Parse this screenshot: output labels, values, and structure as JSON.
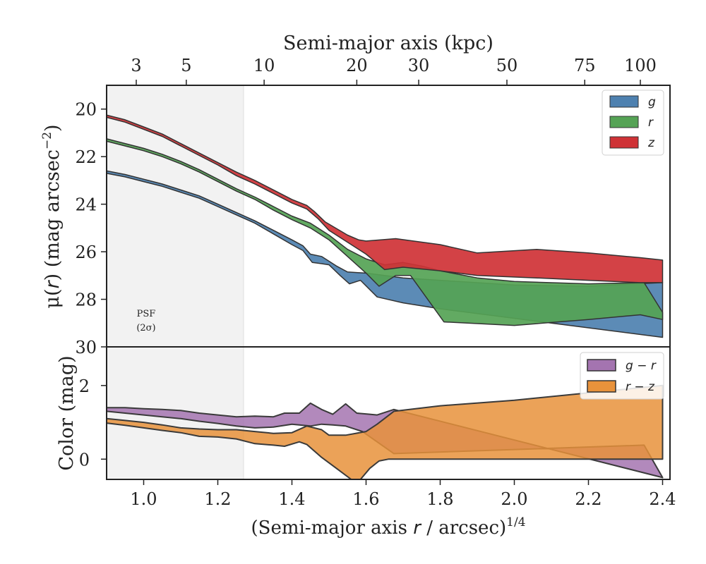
{
  "figure": {
    "top_axis_title": "Semi-major axis (kpc)",
    "bottom_axis_title_main": "(Semi-major axis ",
    "bottom_axis_title_var": "r",
    "bottom_axis_title_rest": " / arcsec)",
    "bottom_axis_title_exp": "1/4",
    "top_panel_ylabel_prefix": "μ(",
    "top_panel_ylabel_var": "r",
    "top_panel_ylabel_suffix": ") (mag arcsec",
    "top_panel_ylabel_exp": "−2",
    "top_panel_ylabel_close": ")",
    "bottom_panel_ylabel": "Color (mag)",
    "psf_label_line1": "PSF",
    "psf_label_line2": "(2σ)"
  },
  "colors": {
    "g": "#4e81b0",
    "r": "#55a355",
    "z": "#cf3236",
    "g_minus_r": "#a474b0",
    "r_minus_z": "#e8923b",
    "psf_band": "#f2f2f2",
    "axis": "#222222"
  },
  "chart_data": [
    {
      "type": "area",
      "panel": "surface-brightness",
      "xlabel": "(Semi-major axis r / arcsec)^1/4",
      "ylabel": "μ(r) (mag arcsec^−2)",
      "xlim": [
        0.9,
        2.42
      ],
      "ylim": [
        30,
        19
      ],
      "y_inverted": true,
      "yticks": [
        20,
        22,
        24,
        26,
        28,
        30
      ],
      "top_axis": {
        "label": "Semi-major axis (kpc)",
        "ticks": [
          {
            "label": "3",
            "x": 0.98
          },
          {
            "label": "5",
            "x": 1.115
          },
          {
            "label": "10",
            "x": 1.325
          },
          {
            "label": "20",
            "x": 1.575
          },
          {
            "label": "30",
            "x": 1.742
          },
          {
            "label": "50",
            "x": 1.98
          },
          {
            "label": "75",
            "x": 2.19
          },
          {
            "label": "100",
            "x": 2.34
          }
        ]
      },
      "psf_band": {
        "label": "PSF (2σ)",
        "x_range": [
          0.9,
          1.275
        ]
      },
      "legend": {
        "location": "top-right",
        "entries": [
          "g",
          "r",
          "z"
        ]
      },
      "series": [
        {
          "name": "g",
          "upper": [
            [
              0.9,
              22.6
            ],
            [
              0.95,
              22.75
            ],
            [
              1.0,
              22.95
            ],
            [
              1.05,
              23.15
            ],
            [
              1.1,
              23.4
            ],
            [
              1.15,
              23.65
            ],
            [
              1.2,
              24.0
            ],
            [
              1.25,
              24.35
            ],
            [
              1.3,
              24.7
            ],
            [
              1.35,
              25.1
            ],
            [
              1.4,
              25.5
            ],
            [
              1.43,
              25.75
            ],
            [
              1.45,
              26.1
            ],
            [
              1.48,
              26.2
            ],
            [
              1.52,
              26.6
            ],
            [
              1.55,
              26.85
            ],
            [
              1.6,
              26.9
            ],
            [
              1.65,
              27.0
            ],
            [
              1.7,
              27.1
            ],
            [
              1.8,
              27.2
            ],
            [
              2.0,
              27.4
            ],
            [
              2.2,
              27.45
            ],
            [
              2.4,
              27.3
            ]
          ],
          "lower": [
            [
              0.9,
              22.7
            ],
            [
              0.95,
              22.85
            ],
            [
              1.0,
              23.05
            ],
            [
              1.05,
              23.25
            ],
            [
              1.1,
              23.5
            ],
            [
              1.15,
              23.75
            ],
            [
              1.2,
              24.1
            ],
            [
              1.25,
              24.45
            ],
            [
              1.3,
              24.8
            ],
            [
              1.35,
              25.25
            ],
            [
              1.4,
              25.7
            ],
            [
              1.43,
              25.95
            ],
            [
              1.455,
              26.45
            ],
            [
              1.48,
              26.5
            ],
            [
              1.5,
              26.55
            ],
            [
              1.53,
              27.0
            ],
            [
              1.555,
              27.35
            ],
            [
              1.585,
              27.2
            ],
            [
              1.63,
              27.9
            ],
            [
              1.7,
              28.15
            ],
            [
              1.8,
              28.4
            ],
            [
              2.0,
              28.8
            ],
            [
              2.2,
              29.2
            ],
            [
              2.4,
              29.6
            ]
          ]
        },
        {
          "name": "r",
          "upper": [
            [
              0.9,
              21.25
            ],
            [
              0.95,
              21.45
            ],
            [
              1.0,
              21.65
            ],
            [
              1.05,
              21.9
            ],
            [
              1.1,
              22.2
            ],
            [
              1.15,
              22.55
            ],
            [
              1.2,
              22.95
            ],
            [
              1.25,
              23.35
            ],
            [
              1.3,
              23.7
            ],
            [
              1.35,
              24.1
            ],
            [
              1.4,
              24.5
            ],
            [
              1.45,
              24.8
            ],
            [
              1.5,
              25.3
            ],
            [
              1.55,
              25.9
            ],
            [
              1.6,
              26.3
            ],
            [
              1.65,
              26.55
            ],
            [
              1.7,
              26.45
            ],
            [
              1.75,
              26.6
            ],
            [
              1.8,
              26.8
            ],
            [
              1.9,
              27.1
            ],
            [
              2.0,
              27.25
            ],
            [
              2.2,
              27.35
            ],
            [
              2.35,
              27.3
            ],
            [
              2.4,
              28.55
            ]
          ],
          "lower": [
            [
              0.9,
              21.35
            ],
            [
              0.95,
              21.55
            ],
            [
              1.0,
              21.75
            ],
            [
              1.05,
              22.0
            ],
            [
              1.1,
              22.3
            ],
            [
              1.15,
              22.65
            ],
            [
              1.2,
              23.05
            ],
            [
              1.25,
              23.45
            ],
            [
              1.3,
              23.8
            ],
            [
              1.35,
              24.25
            ],
            [
              1.4,
              24.65
            ],
            [
              1.45,
              25.0
            ],
            [
              1.5,
              25.5
            ],
            [
              1.55,
              26.2
            ],
            [
              1.6,
              26.9
            ],
            [
              1.635,
              27.45
            ],
            [
              1.68,
              27.0
            ],
            [
              1.72,
              27.0
            ],
            [
              1.81,
              28.95
            ],
            [
              2.0,
              29.1
            ],
            [
              2.2,
              28.85
            ],
            [
              2.34,
              28.65
            ],
            [
              2.4,
              28.85
            ]
          ]
        },
        {
          "name": "z",
          "upper": [
            [
              0.9,
              20.25
            ],
            [
              0.95,
              20.45
            ],
            [
              1.0,
              20.75
            ],
            [
              1.05,
              21.05
            ],
            [
              1.1,
              21.45
            ],
            [
              1.15,
              21.85
            ],
            [
              1.2,
              22.25
            ],
            [
              1.25,
              22.65
            ],
            [
              1.3,
              23.0
            ],
            [
              1.35,
              23.4
            ],
            [
              1.4,
              23.8
            ],
            [
              1.44,
              24.05
            ],
            [
              1.46,
              24.3
            ],
            [
              1.49,
              24.75
            ],
            [
              1.55,
              25.3
            ],
            [
              1.58,
              25.5
            ],
            [
              1.6,
              25.55
            ],
            [
              1.68,
              25.45
            ],
            [
              1.8,
              25.7
            ],
            [
              1.9,
              26.05
            ],
            [
              2.06,
              25.9
            ],
            [
              2.2,
              26.05
            ],
            [
              2.34,
              26.25
            ],
            [
              2.4,
              26.35
            ]
          ],
          "lower": [
            [
              0.9,
              20.35
            ],
            [
              0.95,
              20.55
            ],
            [
              1.0,
              20.85
            ],
            [
              1.05,
              21.15
            ],
            [
              1.1,
              21.55
            ],
            [
              1.15,
              21.95
            ],
            [
              1.2,
              22.35
            ],
            [
              1.25,
              22.8
            ],
            [
              1.3,
              23.15
            ],
            [
              1.35,
              23.55
            ],
            [
              1.4,
              23.95
            ],
            [
              1.44,
              24.2
            ],
            [
              1.47,
              24.6
            ],
            [
              1.5,
              25.1
            ],
            [
              1.55,
              25.6
            ],
            [
              1.6,
              26.1
            ],
            [
              1.65,
              26.75
            ],
            [
              1.7,
              26.65
            ],
            [
              1.8,
              26.8
            ],
            [
              1.9,
              27.0
            ],
            [
              2.06,
              27.1
            ],
            [
              2.2,
              27.2
            ],
            [
              2.34,
              27.3
            ],
            [
              2.4,
              27.3
            ]
          ]
        }
      ]
    },
    {
      "type": "area",
      "panel": "color",
      "xlabel": "(Semi-major axis r / arcsec)^1/4",
      "ylabel": "Color (mag)",
      "xlim": [
        0.9,
        2.42
      ],
      "ylim": [
        -0.55,
        3.05
      ],
      "xticks": [
        1.0,
        1.2,
        1.4,
        1.6,
        1.8,
        2.0,
        2.2,
        2.4
      ],
      "yticks": [
        0,
        2
      ],
      "legend": {
        "location": "top-right",
        "entries": [
          "g − r",
          "r − z"
        ]
      },
      "series": [
        {
          "name": "g − r",
          "upper": [
            [
              0.9,
              1.4
            ],
            [
              0.95,
              1.4
            ],
            [
              1.0,
              1.37
            ],
            [
              1.05,
              1.35
            ],
            [
              1.1,
              1.32
            ],
            [
              1.15,
              1.25
            ],
            [
              1.2,
              1.2
            ],
            [
              1.25,
              1.15
            ],
            [
              1.3,
              1.17
            ],
            [
              1.35,
              1.15
            ],
            [
              1.38,
              1.25
            ],
            [
              1.42,
              1.25
            ],
            [
              1.45,
              1.52
            ],
            [
              1.48,
              1.35
            ],
            [
              1.51,
              1.22
            ],
            [
              1.545,
              1.5
            ],
            [
              1.575,
              1.25
            ],
            [
              1.61,
              1.22
            ],
            [
              1.63,
              1.2
            ],
            [
              1.675,
              1.35
            ]
          ],
          "lower": [
            [
              0.9,
              1.3
            ],
            [
              0.95,
              1.25
            ],
            [
              1.0,
              1.2
            ],
            [
              1.05,
              1.15
            ],
            [
              1.1,
              1.1
            ],
            [
              1.15,
              1.03
            ],
            [
              1.2,
              0.97
            ],
            [
              1.25,
              0.9
            ],
            [
              1.3,
              0.85
            ],
            [
              1.35,
              0.87
            ],
            [
              1.4,
              0.95
            ],
            [
              1.45,
              0.9
            ],
            [
              1.48,
              0.95
            ],
            [
              1.51,
              0.93
            ],
            [
              1.545,
              0.9
            ],
            [
              1.59,
              0.75
            ],
            [
              1.675,
              0.15
            ],
            [
              2.35,
              0.38
            ],
            [
              2.4,
              -0.5
            ]
          ]
        },
        {
          "name": "r − z",
          "upper": [
            [
              0.9,
              1.1
            ],
            [
              0.95,
              1.05
            ],
            [
              1.0,
              1.0
            ],
            [
              1.05,
              0.93
            ],
            [
              1.1,
              0.85
            ],
            [
              1.15,
              0.82
            ],
            [
              1.2,
              0.8
            ],
            [
              1.25,
              0.8
            ],
            [
              1.3,
              0.75
            ],
            [
              1.35,
              0.7
            ],
            [
              1.4,
              0.72
            ],
            [
              1.44,
              0.9
            ],
            [
              1.48,
              0.8
            ],
            [
              1.5,
              0.65
            ],
            [
              1.545,
              0.65
            ],
            [
              1.6,
              0.75
            ],
            [
              1.63,
              0.95
            ],
            [
              1.675,
              1.3
            ],
            [
              1.8,
              1.45
            ],
            [
              2.0,
              1.6
            ],
            [
              2.2,
              1.8
            ],
            [
              2.4,
              2.0
            ]
          ],
          "lower": [
            [
              0.9,
              0.98
            ],
            [
              0.95,
              0.92
            ],
            [
              1.0,
              0.85
            ],
            [
              1.05,
              0.78
            ],
            [
              1.1,
              0.72
            ],
            [
              1.15,
              0.62
            ],
            [
              1.2,
              0.6
            ],
            [
              1.25,
              0.55
            ],
            [
              1.3,
              0.42
            ],
            [
              1.35,
              0.38
            ],
            [
              1.38,
              0.35
            ],
            [
              1.42,
              0.47
            ],
            [
              1.44,
              0.4
            ],
            [
              1.48,
              0.05
            ],
            [
              1.52,
              -0.25
            ],
            [
              1.56,
              -0.55
            ],
            [
              1.585,
              -0.55
            ],
            [
              1.61,
              -0.25
            ],
            [
              1.635,
              -0.05
            ],
            [
              1.66,
              0.0
            ],
            [
              2.0,
              0.0
            ],
            [
              2.2,
              0.0
            ],
            [
              2.4,
              0.0
            ]
          ]
        }
      ]
    }
  ]
}
